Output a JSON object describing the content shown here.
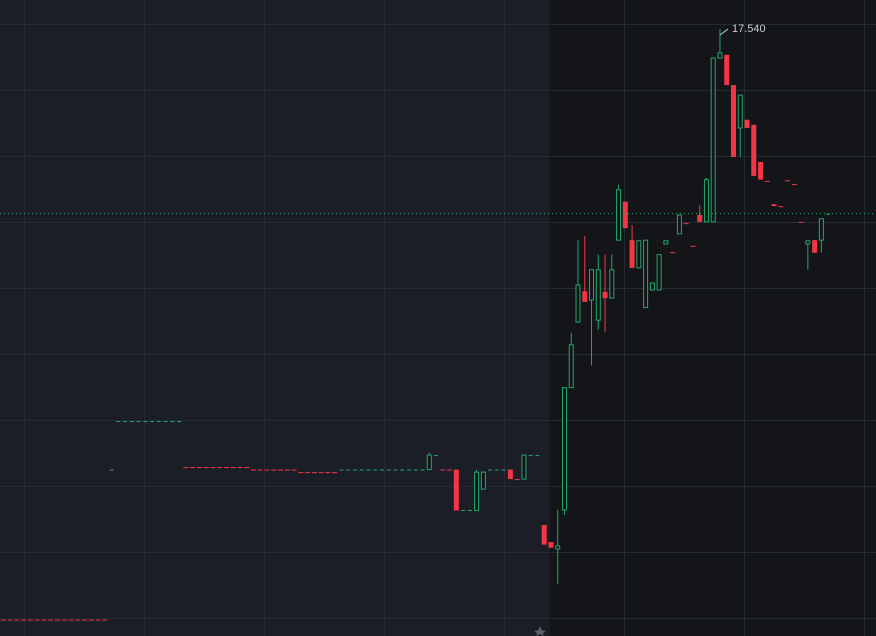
{
  "chart_data": {
    "type": "candlestick",
    "up_color": "#22a86b",
    "down_color": "#f23645",
    "ylim": [
      7.91,
      18.0
    ],
    "open": [
      8.17,
      8.17,
      8.17,
      8.17,
      8.17,
      8.17,
      8.17,
      8.17,
      8.17,
      8.17,
      8.17,
      8.17,
      8.17,
      8.17,
      8.17,
      8.17,
      10.55,
      11.32,
      11.32,
      11.32,
      11.32,
      11.32,
      11.32,
      11.32,
      11.32,
      11.32,
      11.32,
      10.59,
      10.59,
      10.59,
      10.59,
      10.59,
      10.59,
      10.59,
      10.59,
      10.59,
      10.59,
      10.55,
      10.55,
      10.55,
      10.55,
      10.55,
      10.55,
      10.55,
      10.51,
      10.51,
      10.51,
      10.51,
      10.51,
      10.51,
      10.55,
      10.55,
      10.55,
      10.55,
      10.55,
      10.55,
      10.55,
      10.55,
      10.55,
      10.55,
      10.55,
      10.55,
      10.55,
      10.55,
      10.78,
      10.55,
      10.55,
      10.55,
      9.91,
      9.91,
      9.9,
      10.24,
      10.55,
      10.55,
      10.55,
      10.55,
      10.4,
      10.4,
      10.78,
      10.78,
      9.67,
      9.4,
      9.29,
      9.91,
      11.85,
      12.89,
      13.38,
      13.24,
      12.92,
      13.37,
      13.27,
      14.19,
      14.8,
      14.19,
      13.75,
      13.12,
      13.4,
      13.4,
      14.13,
      14.0,
      14.29,
      14.46,
      14.1,
      14.59,
      14.48,
      14.48,
      17.08,
      17.13,
      16.65,
      15.97,
      16.1,
      16.02,
      15.43,
      15.13,
      14.76,
      14.73,
      15.14,
      15.08,
      14.48,
      14.13,
      14.19,
      14.19,
      14.61
    ],
    "high": [
      8.17,
      8.17,
      8.17,
      8.17,
      8.17,
      8.17,
      8.17,
      8.17,
      8.17,
      8.17,
      8.17,
      8.17,
      8.17,
      8.17,
      8.17,
      8.17,
      10.55,
      11.32,
      11.32,
      11.32,
      11.32,
      11.32,
      11.32,
      11.32,
      11.32,
      11.32,
      11.32,
      10.59,
      10.59,
      10.59,
      10.59,
      10.59,
      10.59,
      10.59,
      10.59,
      10.59,
      10.59,
      10.55,
      10.55,
      10.55,
      10.55,
      10.55,
      10.55,
      10.55,
      10.51,
      10.51,
      10.51,
      10.51,
      10.51,
      10.51,
      10.55,
      10.55,
      10.55,
      10.55,
      10.55,
      10.55,
      10.55,
      10.55,
      10.55,
      10.55,
      10.55,
      10.55,
      10.55,
      10.82,
      10.78,
      10.55,
      10.55,
      10.55,
      9.91,
      9.91,
      10.55,
      10.51,
      10.55,
      10.55,
      10.55,
      10.55,
      10.4,
      10.78,
      10.78,
      10.78,
      9.67,
      9.4,
      9.91,
      11.85,
      12.72,
      14.19,
      14.26,
      13.72,
      13.96,
      13.96,
      13.96,
      15.07,
      14.8,
      14.43,
      14.18,
      14.19,
      13.51,
      13.96,
      14.18,
      14.0,
      14.59,
      14.46,
      14.1,
      14.75,
      15.18,
      17.08,
      17.54,
      17.13,
      16.65,
      16.49,
      16.1,
      16.02,
      15.43,
      15.13,
      14.76,
      14.73,
      15.14,
      15.08,
      14.48,
      14.18,
      14.19,
      14.53,
      14.61
    ],
    "low": [
      8.17,
      8.17,
      8.17,
      8.17,
      8.17,
      8.17,
      8.17,
      8.17,
      8.17,
      8.17,
      8.17,
      8.17,
      8.17,
      8.17,
      8.17,
      8.17,
      10.55,
      11.32,
      11.32,
      11.32,
      11.32,
      11.32,
      11.32,
      11.32,
      11.32,
      11.32,
      11.32,
      10.59,
      10.59,
      10.59,
      10.59,
      10.59,
      10.59,
      10.59,
      10.59,
      10.59,
      10.59,
      10.55,
      10.55,
      10.55,
      10.55,
      10.55,
      10.55,
      10.55,
      10.51,
      10.51,
      10.51,
      10.51,
      10.51,
      10.51,
      10.55,
      10.55,
      10.55,
      10.55,
      10.55,
      10.55,
      10.55,
      10.55,
      10.55,
      10.55,
      10.55,
      10.55,
      10.55,
      10.55,
      10.78,
      10.55,
      10.55,
      9.9,
      9.91,
      9.91,
      9.9,
      10.24,
      10.55,
      10.55,
      10.55,
      10.4,
      10.4,
      10.4,
      10.78,
      10.78,
      9.36,
      9.31,
      8.74,
      9.83,
      11.85,
      12.89,
      13.21,
      12.2,
      12.77,
      12.73,
      13.27,
      14.19,
      14.38,
      13.75,
      13.75,
      13.12,
      13.4,
      13.4,
      14.13,
      14.0,
      14.29,
      14.46,
      14.1,
      14.48,
      14.48,
      14.48,
      17.08,
      16.65,
      15.51,
      15.51,
      15.97,
      15.21,
      15.15,
      15.13,
      14.73,
      14.73,
      15.13,
      15.08,
      14.48,
      13.72,
      13.99,
      13.99,
      14.61
    ],
    "close": [
      8.17,
      8.17,
      8.17,
      8.17,
      8.17,
      8.17,
      8.17,
      8.17,
      8.17,
      8.17,
      8.17,
      8.17,
      8.17,
      8.17,
      8.17,
      8.17,
      10.55,
      11.32,
      11.32,
      11.32,
      11.32,
      11.32,
      11.32,
      11.32,
      11.32,
      11.32,
      11.32,
      10.59,
      10.59,
      10.59,
      10.59,
      10.59,
      10.59,
      10.59,
      10.59,
      10.59,
      10.59,
      10.55,
      10.55,
      10.55,
      10.55,
      10.55,
      10.55,
      10.55,
      10.51,
      10.51,
      10.51,
      10.51,
      10.51,
      10.51,
      10.55,
      10.55,
      10.55,
      10.55,
      10.55,
      10.55,
      10.55,
      10.55,
      10.55,
      10.55,
      10.55,
      10.55,
      10.55,
      10.78,
      10.78,
      10.55,
      10.55,
      9.9,
      9.91,
      9.91,
      10.51,
      10.51,
      10.55,
      10.55,
      10.55,
      10.4,
      10.4,
      10.78,
      10.78,
      10.78,
      9.36,
      9.31,
      9.34,
      11.85,
      12.53,
      13.48,
      13.21,
      13.72,
      13.72,
      13.27,
      13.72,
      14.99,
      14.38,
      13.75,
      14.18,
      14.19,
      13.51,
      13.96,
      14.18,
      14.0,
      14.59,
      14.46,
      14.1,
      14.48,
      15.15,
      17.08,
      17.16,
      16.65,
      15.51,
      16.49,
      15.97,
      15.21,
      15.15,
      15.13,
      14.73,
      14.73,
      15.13,
      15.08,
      14.48,
      14.18,
      13.99,
      14.53,
      14.61
    ],
    "annotations": [
      {
        "value": 17.54,
        "label": "17.540"
      }
    ]
  }
}
